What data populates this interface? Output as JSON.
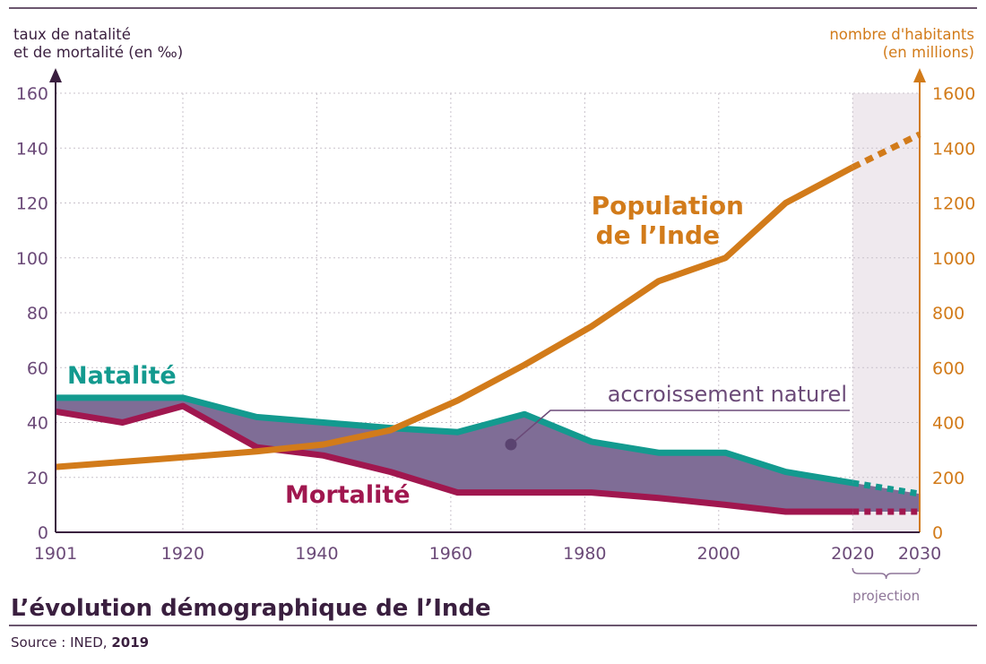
{
  "chart_data": {
    "type": "line",
    "title": "L’évolution démographique de l’Inde",
    "source_prefix": "Source : INED, ",
    "source_year": "2019",
    "y_left_label_line1": "taux de natalité",
    "y_left_label_line2": "et de mortalité (en ‰)",
    "y_right_label_line1": "nombre d'habitants",
    "y_right_label_line2": "(en millions)",
    "y_left_range": [
      0,
      160
    ],
    "y_right_range": [
      0,
      1600
    ],
    "x_range": [
      1901,
      2030
    ],
    "x_ticks": [
      "1901",
      "1920",
      "1940",
      "1960",
      "1980",
      "2000",
      "2020",
      "2030"
    ],
    "x_tick_values": [
      1901,
      1920,
      1940,
      1960,
      1980,
      2000,
      2020,
      2030
    ],
    "y_left_ticks": [
      "0",
      "20",
      "40",
      "60",
      "80",
      "100",
      "120",
      "140",
      "160"
    ],
    "y_right_ticks": [
      "0",
      "200",
      "400",
      "600",
      "800",
      "1000",
      "1200",
      "1400",
      "1600"
    ],
    "projection_range": [
      2020,
      2030
    ],
    "projection_label": "projection",
    "grid": true,
    "series": [
      {
        "name": "Natalité",
        "axis": "left",
        "color": "#139a8f",
        "points": [
          [
            1901,
            49
          ],
          [
            1920,
            49
          ],
          [
            1931,
            42
          ],
          [
            1941,
            40
          ],
          [
            1951,
            38
          ],
          [
            1961,
            36.5
          ],
          [
            1971,
            43
          ],
          [
            1981,
            33
          ],
          [
            1991,
            29
          ],
          [
            2001,
            29
          ],
          [
            2010,
            22
          ],
          [
            2020,
            18
          ]
        ],
        "projection": [
          [
            2020,
            18
          ],
          [
            2030,
            14
          ]
        ]
      },
      {
        "name": "Mortalité",
        "axis": "left",
        "color": "#a0174f",
        "points": [
          [
            1901,
            44
          ],
          [
            1911,
            40
          ],
          [
            1920,
            46
          ],
          [
            1931,
            31
          ],
          [
            1941,
            28
          ],
          [
            1951,
            22
          ],
          [
            1961,
            14.5
          ],
          [
            1971,
            14.5
          ],
          [
            1981,
            14.5
          ],
          [
            1991,
            12.5
          ],
          [
            2001,
            10
          ],
          [
            2010,
            7.5
          ],
          [
            2020,
            7.5
          ]
        ],
        "projection": [
          [
            2020,
            7.5
          ],
          [
            2030,
            7.5
          ]
        ]
      },
      {
        "name": "Population de l’Inde",
        "name_line1": "Population",
        "name_line2": "de l’Inde",
        "axis": "right",
        "color": "#d27b1a",
        "points": [
          [
            1901,
            238
          ],
          [
            1921,
            275
          ],
          [
            1931,
            295
          ],
          [
            1941,
            320
          ],
          [
            1951,
            372
          ],
          [
            1961,
            480
          ],
          [
            1971,
            610
          ],
          [
            1981,
            750
          ],
          [
            1991,
            915
          ],
          [
            2001,
            1000
          ],
          [
            2010,
            1200
          ],
          [
            2020,
            1330
          ]
        ],
        "projection": [
          [
            2020,
            1330
          ],
          [
            2030,
            1450
          ]
        ]
      }
    ],
    "annotation": "accroissement naturel",
    "colors": {
      "fill": "#7f6d96",
      "axis": "#3a1f3f",
      "axis_right": "#d27b1a",
      "projection_bg": "#efe9ee",
      "grid": "#c9c2cb"
    }
  }
}
